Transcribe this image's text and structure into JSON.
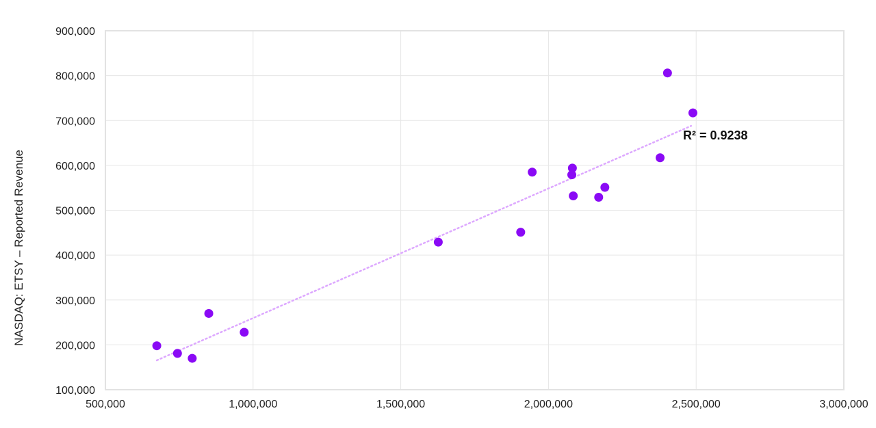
{
  "chart_data": {
    "type": "scatter",
    "title": "",
    "xlabel": "",
    "ylabel": "NASDAQ: ETSY – Reported Revenue",
    "xlim": [
      500000,
      3000000
    ],
    "ylim": [
      100000,
      900000
    ],
    "x_ticks": [
      500000,
      1000000,
      1500000,
      2000000,
      2500000,
      3000000
    ],
    "x_tick_labels": [
      "500,000",
      "1,000,000",
      "1,500,000",
      "2,000,000",
      "2,500,000",
      "3,000,000"
    ],
    "y_ticks": [
      100000,
      200000,
      300000,
      400000,
      500000,
      600000,
      700000,
      800000,
      900000
    ],
    "y_tick_labels": [
      "100,000",
      "200,000",
      "300,000",
      "400,000",
      "500,000",
      "600,000",
      "700,000",
      "800,000",
      "900,000"
    ],
    "grid": true,
    "legend": null,
    "series": [
      {
        "name": "Reported Revenue",
        "color": "#8A0AF5",
        "points": [
          {
            "x": 674000,
            "y": 198000
          },
          {
            "x": 744000,
            "y": 181000
          },
          {
            "x": 794000,
            "y": 170000
          },
          {
            "x": 850000,
            "y": 270000
          },
          {
            "x": 970000,
            "y": 228000
          },
          {
            "x": 1627000,
            "y": 429000
          },
          {
            "x": 1906000,
            "y": 451000
          },
          {
            "x": 1945000,
            "y": 585000
          },
          {
            "x": 2081000,
            "y": 594000
          },
          {
            "x": 2079000,
            "y": 579000
          },
          {
            "x": 2084000,
            "y": 532000
          },
          {
            "x": 2170000,
            "y": 529000
          },
          {
            "x": 2191000,
            "y": 551000
          },
          {
            "x": 2378000,
            "y": 617000
          },
          {
            "x": 2403000,
            "y": 806000
          },
          {
            "x": 2489000,
            "y": 717000
          }
        ]
      }
    ],
    "trendline": {
      "type": "linear",
      "color": "#DDA8FF",
      "style": "dotted",
      "start": {
        "x": 674000,
        "y": 165500
      },
      "end": {
        "x": 2483000,
        "y": 688000
      },
      "annotation": "R² = 0.9238",
      "annotation_position": {
        "x": 2455000,
        "y": 655000
      }
    },
    "annotations": [
      "R² = 0.9238"
    ]
  },
  "colors": {
    "point": "#8A0AF5",
    "trendline": "#DDA8FF",
    "grid": "#E6E6E6",
    "plot_border": "#E2E2E2",
    "text": "#222222"
  }
}
